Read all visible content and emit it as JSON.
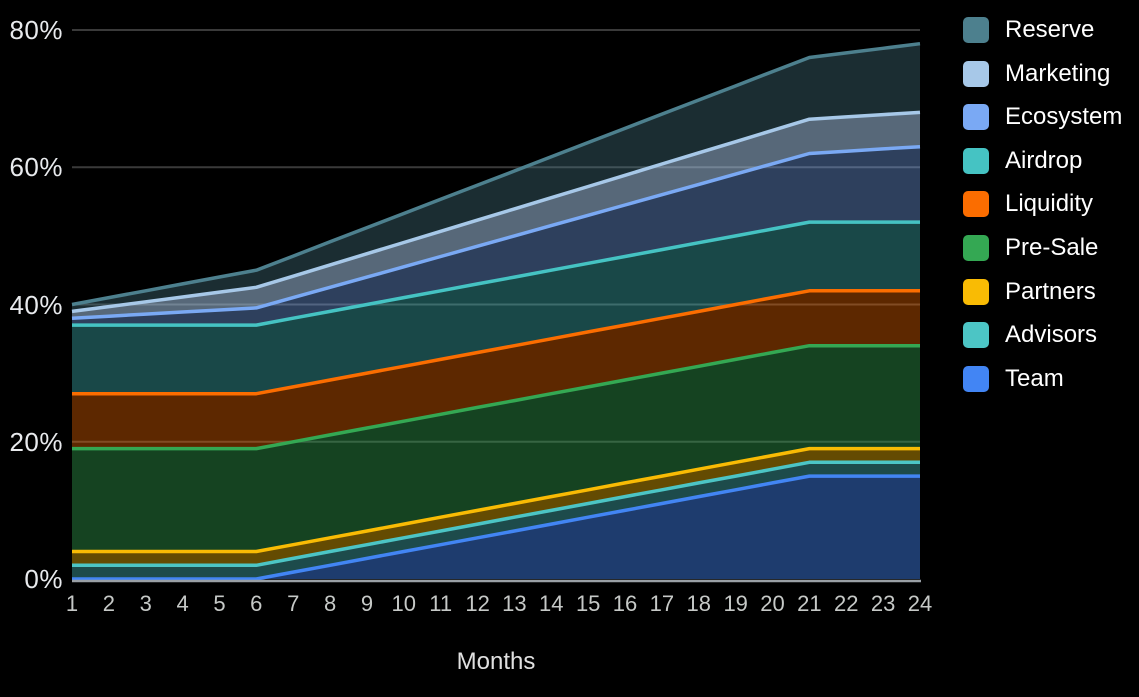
{
  "page": {
    "background": "#000000",
    "axis_line_color": "#9aa0a6",
    "gridline_color": "#3a3a3a"
  },
  "chart_data": {
    "type": "area",
    "stacked": true,
    "title": "",
    "xlabel": "Months",
    "ylabel": "",
    "unit": "%",
    "grid": true,
    "legend_position": "right",
    "ylim": [
      0,
      80
    ],
    "y_ticks": [
      "80%",
      "60%",
      "40%",
      "20%",
      "0%"
    ],
    "y_tick_values": [
      80,
      60,
      40,
      20,
      0
    ],
    "categories": [
      "1",
      "2",
      "3",
      "4",
      "5",
      "6",
      "7",
      "8",
      "9",
      "10",
      "11",
      "12",
      "13",
      "14",
      "15",
      "16",
      "17",
      "18",
      "19",
      "20",
      "21",
      "22",
      "23",
      "24"
    ],
    "series": [
      {
        "name": "Team",
        "color": "#4285f4",
        "fill_opacity": 0.45,
        "values": [
          0,
          0,
          0,
          0,
          0,
          0,
          1,
          2,
          3,
          4,
          5,
          6,
          7,
          8,
          9,
          10,
          11,
          12,
          13,
          14,
          15,
          15,
          15,
          15
        ]
      },
      {
        "name": "Advisors",
        "color": "#4cc5c5",
        "fill_opacity": 0.38,
        "values": [
          2,
          2,
          2,
          2,
          2,
          2,
          2,
          2,
          2,
          2,
          2,
          2,
          2,
          2,
          2,
          2,
          2,
          2,
          2,
          2,
          2,
          2,
          2,
          2
        ]
      },
      {
        "name": "Partners",
        "color": "#f9bb04",
        "fill_opacity": 0.4,
        "values": [
          2,
          2,
          2,
          2,
          2,
          2,
          2,
          2,
          2,
          2,
          2,
          2,
          2,
          2,
          2,
          2,
          2,
          2,
          2,
          2,
          2,
          2,
          2,
          2
        ]
      },
      {
        "name": "Pre-Sale",
        "color": "#34a853",
        "fill_opacity": 0.4,
        "values": [
          15,
          15,
          15,
          15,
          15,
          15,
          15,
          15,
          15,
          15,
          15,
          15,
          15,
          15,
          15,
          15,
          15,
          15,
          15,
          15,
          15,
          15,
          15,
          15
        ]
      },
      {
        "name": "Liquidity",
        "color": "#fb6d00",
        "fill_opacity": 0.37,
        "values": [
          8,
          8,
          8,
          8,
          8,
          8,
          8,
          8,
          8,
          8,
          8,
          8,
          8,
          8,
          8,
          8,
          8,
          8,
          8,
          8,
          8,
          8,
          8,
          8
        ]
      },
      {
        "name": "Airdrop",
        "color": "#45c3c3",
        "fill_opacity": 0.37,
        "values": [
          10,
          10,
          10,
          10,
          10,
          10,
          10,
          10,
          10,
          10,
          10,
          10,
          10,
          10,
          10,
          10,
          10,
          10,
          10,
          10,
          10,
          10,
          10,
          10
        ]
      },
      {
        "name": "Ecosystem",
        "color": "#7aa9f4",
        "fill_opacity": 0.38,
        "values": [
          1,
          1.3,
          1.6,
          1.9,
          2.2,
          2.5,
          3,
          3.5,
          4,
          4.5,
          5,
          5.5,
          6,
          6.5,
          7,
          7.5,
          8,
          8.5,
          9,
          9.5,
          10,
          10.33,
          10.67,
          11
        ]
      },
      {
        "name": "Marketing",
        "color": "#a7c8e8",
        "fill_opacity": 0.52,
        "values": [
          1,
          1.4,
          1.8,
          2.2,
          2.6,
          3,
          3.13,
          3.27,
          3.4,
          3.53,
          3.67,
          3.8,
          3.93,
          4.07,
          4.2,
          4.33,
          4.47,
          4.6,
          4.73,
          4.87,
          5,
          5,
          5,
          5
        ]
      },
      {
        "name": "Reserve",
        "color": "#4d808e",
        "fill_opacity": 0.35,
        "values": [
          1,
          1.3,
          1.6,
          1.9,
          2.2,
          2.5,
          2.93,
          3.37,
          3.8,
          4.23,
          4.67,
          5.1,
          5.53,
          5.97,
          6.4,
          6.83,
          7.27,
          7.7,
          8.13,
          8.57,
          9,
          9.33,
          9.67,
          10
        ]
      }
    ],
    "totals_by_month": [
      40,
      41,
      42,
      43,
      44,
      45,
      47.07,
      49.13,
      51.2,
      53.27,
      55.33,
      57.4,
      59.47,
      61.53,
      63.6,
      65.67,
      67.73,
      69.8,
      71.87,
      73.93,
      76,
      76.67,
      77.33,
      78
    ]
  },
  "legend": {
    "items": [
      {
        "label": "Reserve",
        "color": "#4d808e"
      },
      {
        "label": "Marketing",
        "color": "#a7c8e8"
      },
      {
        "label": "Ecosystem",
        "color": "#7aa9f4"
      },
      {
        "label": "Airdrop",
        "color": "#45c3c3"
      },
      {
        "label": "Liquidity",
        "color": "#fb6d00"
      },
      {
        "label": "Pre-Sale",
        "color": "#34a853"
      },
      {
        "label": "Partners",
        "color": "#f9bb04"
      },
      {
        "label": "Advisors",
        "color": "#4cc5c5"
      },
      {
        "label": "Team",
        "color": "#4285f4"
      }
    ]
  }
}
